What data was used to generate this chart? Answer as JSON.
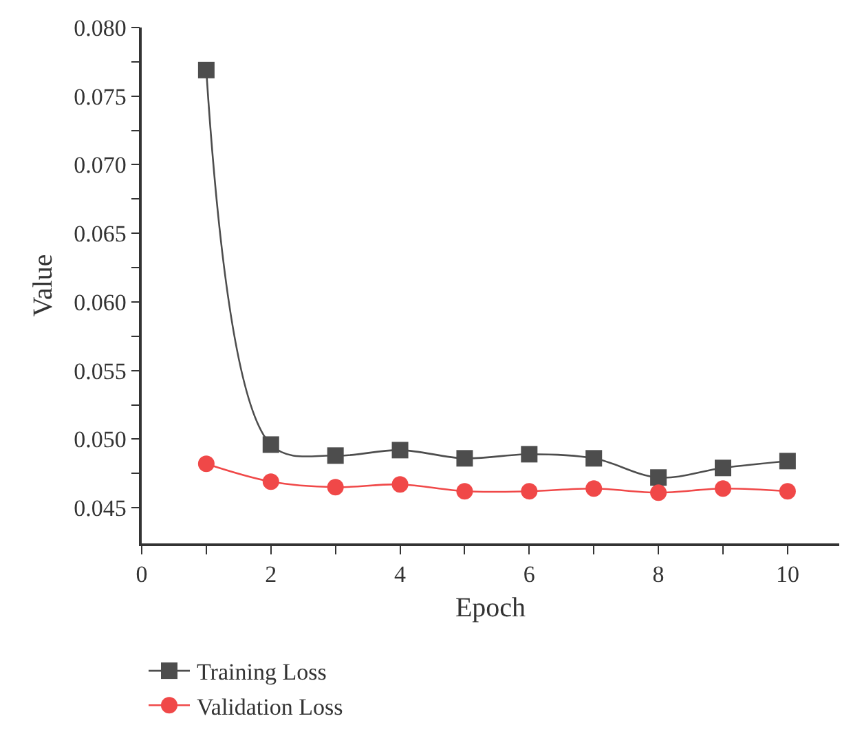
{
  "chart_data": {
    "type": "line",
    "xlabel": "Epoch",
    "ylabel": "Value",
    "x": [
      1,
      2,
      3,
      4,
      5,
      6,
      7,
      8,
      9,
      10
    ],
    "series": [
      {
        "name": "Training Loss",
        "color": "#4d4d4d",
        "marker": "square",
        "values": [
          0.0769,
          0.0496,
          0.0488,
          0.0492,
          0.0486,
          0.0489,
          0.0486,
          0.0472,
          0.0479,
          0.0484
        ]
      },
      {
        "name": "Validation Loss",
        "color": "#f04848",
        "marker": "circle",
        "values": [
          0.0482,
          0.0469,
          0.0465,
          0.0467,
          0.0462,
          0.0462,
          0.0464,
          0.0461,
          0.0464,
          0.0462
        ]
      }
    ],
    "xlim": [
      0,
      10.8
    ],
    "xticks": [
      0,
      {
        "value": 1,
        "label": null
      },
      2,
      {
        "value": 3,
        "label": null
      },
      4,
      {
        "value": 5,
        "label": null
      },
      6,
      {
        "value": 7,
        "label": null
      },
      8,
      {
        "value": 9,
        "label": null
      },
      10
    ],
    "ylim": [
      0.0424,
      0.08
    ],
    "yticks": [
      {
        "value": 0.045,
        "label": "0.045"
      },
      {
        "value": 0.0475,
        "label": null
      },
      {
        "value": 0.05,
        "label": "0.050"
      },
      {
        "value": 0.0525,
        "label": null
      },
      {
        "value": 0.055,
        "label": "0.055"
      },
      {
        "value": 0.0575,
        "label": null
      },
      {
        "value": 0.06,
        "label": "0.060"
      },
      {
        "value": 0.0625,
        "label": null
      },
      {
        "value": 0.065,
        "label": "0.065"
      },
      {
        "value": 0.0675,
        "label": null
      },
      {
        "value": 0.07,
        "label": "0.070"
      },
      {
        "value": 0.0725,
        "label": null
      },
      {
        "value": 0.075,
        "label": "0.075"
      },
      {
        "value": 0.0775,
        "label": null
      },
      {
        "value": 0.08,
        "label": "0.080"
      }
    ],
    "grid": false,
    "legend": "bottom left"
  }
}
